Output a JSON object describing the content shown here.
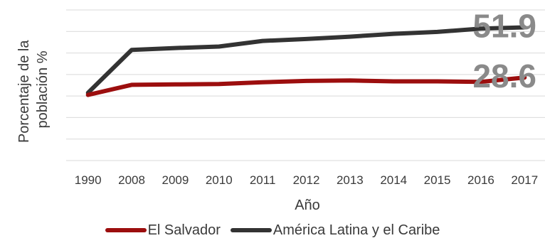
{
  "chart_data": {
    "type": "line",
    "title": "",
    "xlabel": "Año",
    "ylabel": [
      "Porcentaje de la",
      "población %"
    ],
    "categories": [
      "1990",
      "2008",
      "2009",
      "2010",
      "2011",
      "2012",
      "2013",
      "2014",
      "2015",
      "2016",
      "2017"
    ],
    "ylim": [
      -10,
      60
    ],
    "grid": true,
    "legend_position": "bottom",
    "series": [
      {
        "name": "El Salvador",
        "color": "#9c0e0e",
        "values": [
          20.5,
          25.2,
          25.4,
          25.6,
          26.4,
          27.0,
          27.2,
          26.8,
          26.8,
          26.6,
          28.6
        ],
        "end_label": "28.6"
      },
      {
        "name": "América Latina y el Caribe",
        "color": "#333333",
        "values": [
          21.5,
          41.4,
          42.3,
          43.0,
          45.6,
          46.5,
          47.6,
          48.9,
          49.8,
          51.3,
          51.9
        ],
        "end_label": "51.9"
      }
    ]
  }
}
